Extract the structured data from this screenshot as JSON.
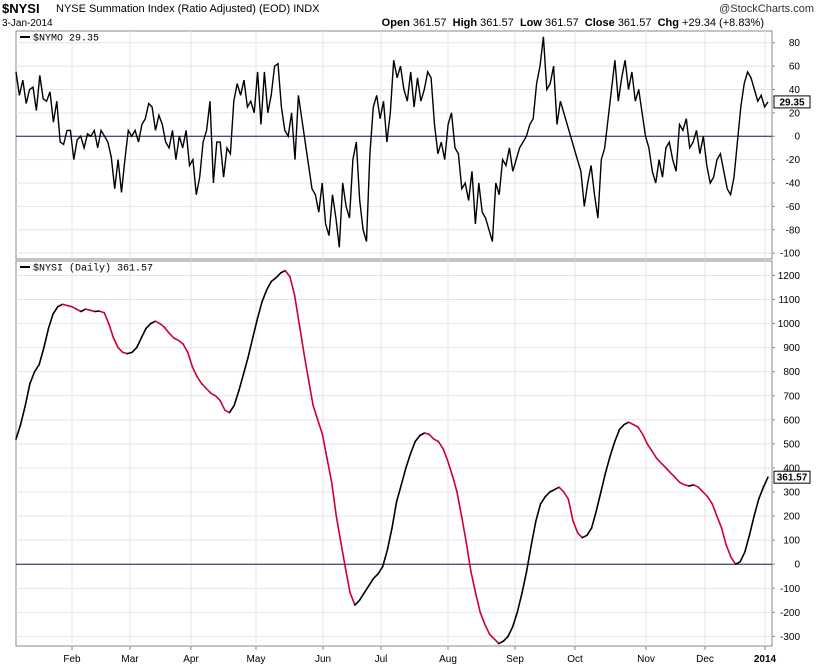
{
  "header": {
    "symbol": "$NYSI",
    "description": "NYSE Summation Index (Ratio Adjusted) (EOD)",
    "exchange": "INDX",
    "date": "3-Jan-2014",
    "watermark": "@StockCharts.com",
    "open_label": "Open",
    "open": "361.57",
    "high_label": "High",
    "high": "361.57",
    "low_label": "Low",
    "low": "361.57",
    "close_label": "Close",
    "close": "361.57",
    "chg_label": "Chg",
    "chg": "+29.34 (+8.83%)"
  },
  "chart_data": [
    {
      "type": "line",
      "legend": "$NYMO 29.35",
      "last_value_label": "29.35",
      "ylim": [
        -105,
        90
      ],
      "yticks": [
        80,
        60,
        40,
        20,
        0,
        -20,
        -40,
        -60,
        -80,
        -100
      ],
      "zero_line": true,
      "color": "#000000",
      "values": [
        55,
        35,
        48,
        28,
        40,
        42,
        22,
        52,
        32,
        30,
        38,
        12,
        30,
        -5,
        -7,
        5,
        5,
        -20,
        -3,
        0,
        -10,
        2,
        0,
        5,
        -10,
        5,
        0,
        -5,
        -18,
        -45,
        -20,
        -48,
        -20,
        5,
        0,
        5,
        -5,
        10,
        15,
        28,
        25,
        5,
        18,
        10,
        -5,
        -10,
        5,
        -20,
        0,
        -10,
        5,
        -25,
        -20,
        -50,
        -35,
        -5,
        5,
        30,
        -40,
        -5,
        -5,
        -35,
        -10,
        -15,
        30,
        45,
        35,
        48,
        25,
        30,
        20,
        55,
        10,
        55,
        20,
        35,
        60,
        62,
        25,
        5,
        0,
        20,
        -20,
        35,
        15,
        -5,
        -25,
        -45,
        -50,
        -65,
        -40,
        -75,
        -85,
        -50,
        -70,
        -95,
        -40,
        -60,
        -70,
        -20,
        -5,
        -55,
        -80,
        -90,
        -15,
        25,
        35,
        15,
        30,
        -5,
        20,
        65,
        50,
        60,
        40,
        30,
        55,
        25,
        50,
        30,
        40,
        55,
        50,
        10,
        -15,
        -5,
        -20,
        10,
        20,
        -10,
        -15,
        -45,
        -40,
        -55,
        -30,
        -75,
        -40,
        -65,
        -70,
        -80,
        -90,
        -40,
        -50,
        -20,
        -25,
        -10,
        -30,
        -20,
        -10,
        -5,
        0,
        10,
        15,
        45,
        60,
        85,
        40,
        45,
        60,
        10,
        30,
        20,
        10,
        0,
        -10,
        -20,
        -30,
        -60,
        -40,
        -25,
        -50,
        -70,
        -20,
        -10,
        15,
        40,
        65,
        30,
        50,
        65,
        40,
        55,
        30,
        40,
        20,
        0,
        -10,
        -30,
        -40,
        -20,
        -35,
        -10,
        -5,
        -20,
        -30,
        10,
        5,
        15,
        -10,
        -5,
        5,
        -15,
        0,
        -25,
        -40,
        -35,
        -20,
        -15,
        -30,
        -45,
        -50,
        -35,
        -5,
        25,
        45,
        55,
        50,
        40,
        30,
        35,
        25,
        29.35
      ]
    },
    {
      "type": "line",
      "legend": "$NYSI (Daily) 361.57",
      "last_value_label": "361.57",
      "ylim": [
        -340,
        1260
      ],
      "yticks": [
        1200,
        1100,
        1000,
        900,
        800,
        700,
        600,
        500,
        400,
        300,
        200,
        100,
        0,
        -100,
        -200,
        -300
      ],
      "zero_line": true,
      "rising_color": "#000000",
      "falling_color": "#cc0033",
      "x_labels": [
        "Feb",
        "Mar",
        "Apr",
        "May",
        "Jun",
        "Jul",
        "Aug",
        "Sep",
        "Oct",
        "Nov",
        "Dec",
        "2014"
      ],
      "values": [
        520,
        580,
        660,
        750,
        800,
        830,
        900,
        980,
        1040,
        1070,
        1080,
        1075,
        1070,
        1060,
        1050,
        1060,
        1055,
        1050,
        1052,
        1045,
        1000,
        940,
        900,
        880,
        875,
        880,
        900,
        940,
        980,
        1000,
        1010,
        1000,
        985,
        960,
        940,
        930,
        915,
        880,
        820,
        780,
        750,
        730,
        710,
        700,
        680,
        640,
        630,
        660,
        720,
        790,
        860,
        940,
        1020,
        1090,
        1140,
        1175,
        1190,
        1210,
        1220,
        1195,
        1120,
        1000,
        880,
        770,
        660,
        600,
        540,
        440,
        340,
        200,
        90,
        -20,
        -120,
        -170,
        -150,
        -120,
        -90,
        -60,
        -40,
        -10,
        60,
        150,
        260,
        330,
        400,
        460,
        510,
        535,
        545,
        540,
        520,
        510,
        480,
        430,
        370,
        300,
        200,
        90,
        -30,
        -120,
        -200,
        -250,
        -290,
        -310,
        -330,
        -320,
        -300,
        -260,
        -200,
        -120,
        -30,
        80,
        180,
        250,
        280,
        300,
        310,
        320,
        300,
        270,
        180,
        130,
        110,
        120,
        150,
        220,
        300,
        380,
        450,
        510,
        560,
        580,
        590,
        580,
        570,
        540,
        500,
        470,
        440,
        420,
        400,
        380,
        360,
        340,
        330,
        325,
        330,
        320,
        300,
        280,
        250,
        200,
        150,
        80,
        30,
        0,
        10,
        50,
        120,
        200,
        270,
        320,
        361.57
      ]
    }
  ]
}
